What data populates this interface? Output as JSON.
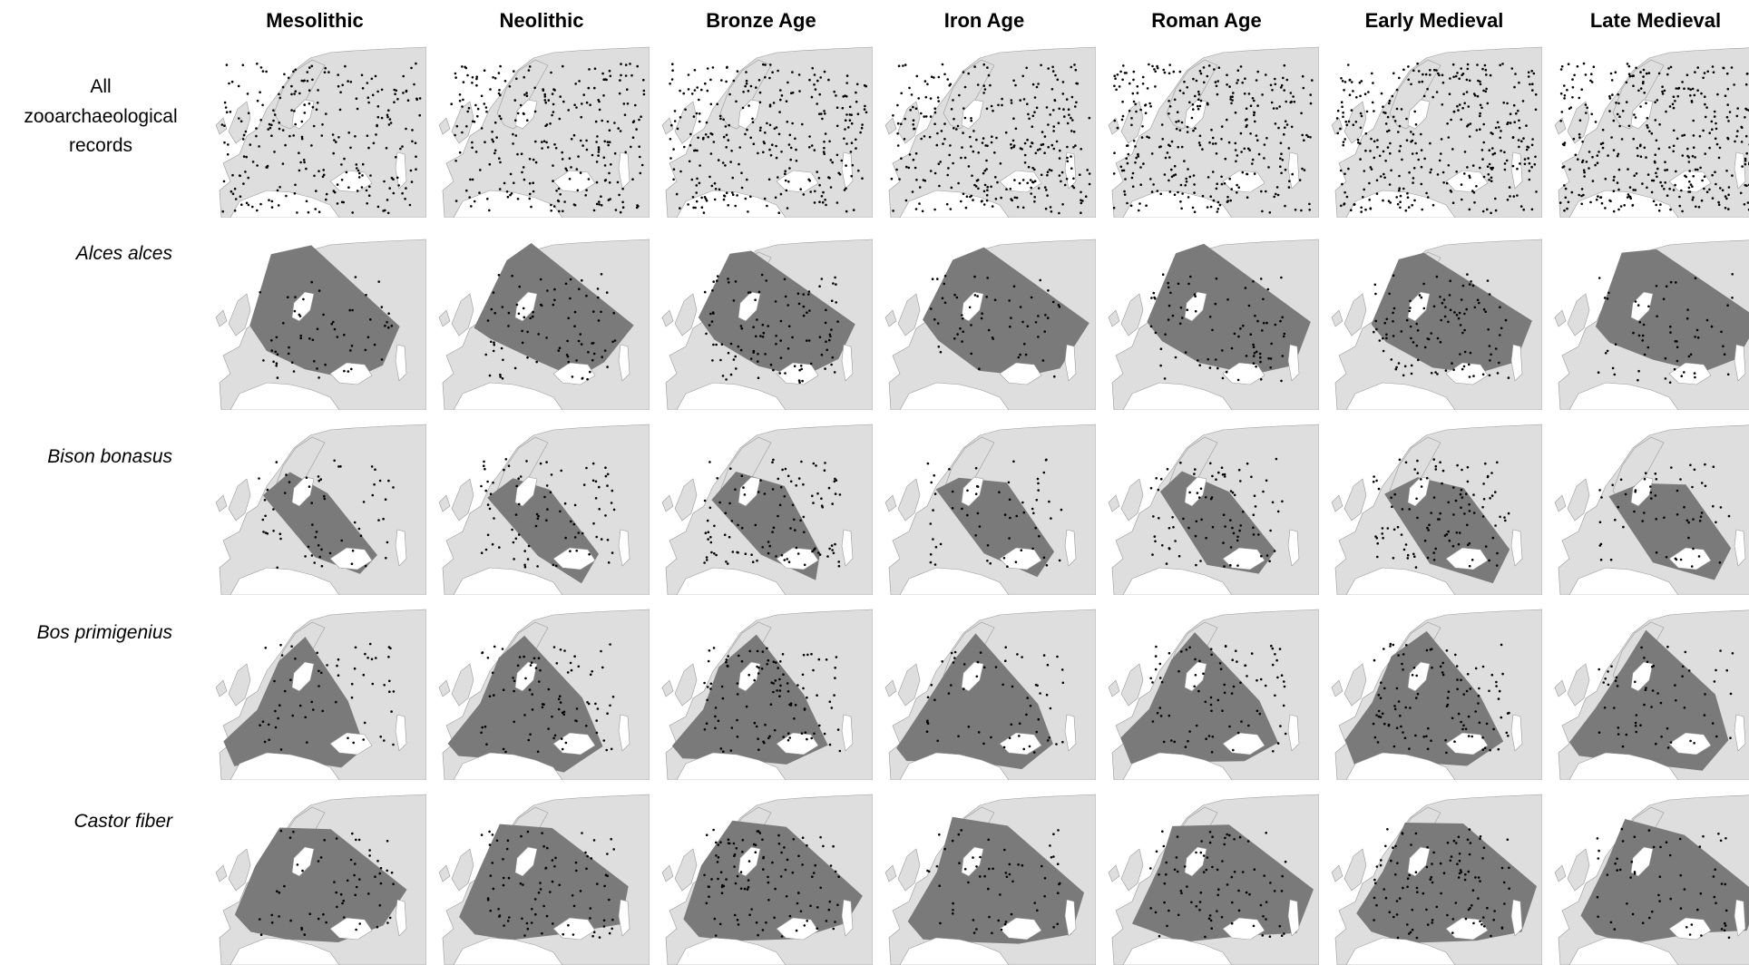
{
  "periods": [
    "Mesolithic",
    "Neolithic",
    "Bronze Age",
    "Iron Age",
    "Roman Age",
    "Early Medieval",
    "Late Medieval"
  ],
  "rows": [
    {
      "label": "All\nzooarchaeological\nrecords",
      "italic": false,
      "hull": false
    },
    {
      "label": "Alces alces",
      "italic": true,
      "hull": true
    },
    {
      "label": "Bison bonasus",
      "italic": true,
      "hull": true
    },
    {
      "label": "Bos primigenius",
      "italic": true,
      "hull": true
    },
    {
      "label": "Castor fiber",
      "italic": true,
      "hull": true
    }
  ],
  "colors": {
    "land": "#dedede",
    "sea": "#ffffff",
    "hull": "#7a7a7a",
    "points": "#000000"
  }
}
